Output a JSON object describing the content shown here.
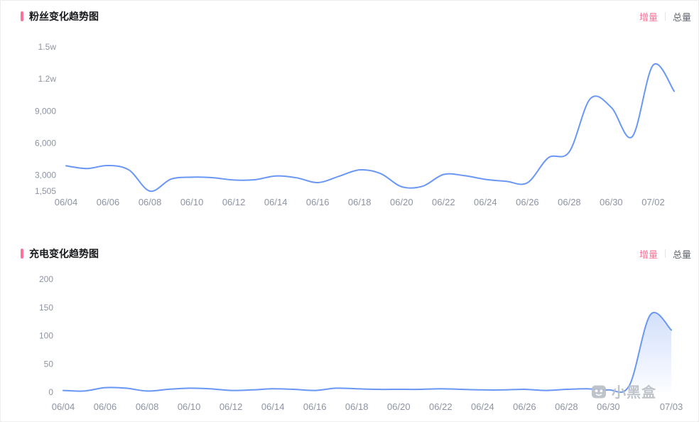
{
  "page": {
    "background": "#ffffff",
    "accent_color": "#fb7299",
    "line_color": "#6a97f5",
    "axis_label_color": "#8d93a2"
  },
  "watermark": {
    "text": "小黑盒",
    "icon": "xiaoheihe-box-logo"
  },
  "chart_data": [
    {
      "type": "line",
      "title": "粉丝变化趋势图",
      "controls": {
        "increment": "增量",
        "total": "总量",
        "active": "increment"
      },
      "color": "#6a97f5",
      "area": false,
      "grid": false,
      "legend_position": "none",
      "ylim": [
        1505,
        15000
      ],
      "yticks": [
        {
          "value": 1505,
          "label": "1,505"
        },
        {
          "value": 3000,
          "label": "3,000"
        },
        {
          "value": 6000,
          "label": "6,000"
        },
        {
          "value": 9000,
          "label": "9,000"
        },
        {
          "value": 12000,
          "label": "1.2w"
        },
        {
          "value": 15000,
          "label": "1.5w"
        }
      ],
      "x": [
        "06/04",
        "06/05",
        "06/06",
        "06/07",
        "06/08",
        "06/09",
        "06/10",
        "06/11",
        "06/12",
        "06/13",
        "06/14",
        "06/15",
        "06/16",
        "06/17",
        "06/18",
        "06/19",
        "06/20",
        "06/21",
        "06/22",
        "06/23",
        "06/24",
        "06/25",
        "06/26",
        "06/27",
        "06/28",
        "06/29",
        "06/30",
        "07/01",
        "07/02",
        "07/03"
      ],
      "xtick_indices": [
        0,
        2,
        4,
        6,
        8,
        10,
        12,
        14,
        16,
        18,
        20,
        22,
        24,
        26,
        28
      ],
      "values": [
        3870,
        3620,
        3900,
        3480,
        1505,
        2620,
        2810,
        2760,
        2540,
        2570,
        2920,
        2750,
        2300,
        2880,
        3490,
        3150,
        1920,
        1960,
        3060,
        2950,
        2600,
        2420,
        2280,
        4620,
        5180,
        10150,
        9350,
        6600,
        13300,
        10850
      ]
    },
    {
      "type": "line",
      "title": "充电变化趋势图",
      "controls": {
        "increment": "增量",
        "total": "总量",
        "active": "increment"
      },
      "color": "#6a97f5",
      "area": true,
      "grid": false,
      "legend_position": "none",
      "ylim": [
        0,
        200
      ],
      "yticks": [
        {
          "value": 0,
          "label": "0"
        },
        {
          "value": 50,
          "label": "50"
        },
        {
          "value": 100,
          "label": "100"
        },
        {
          "value": 150,
          "label": "150"
        },
        {
          "value": 200,
          "label": "200"
        }
      ],
      "x": [
        "06/04",
        "06/05",
        "06/06",
        "06/07",
        "06/08",
        "06/09",
        "06/10",
        "06/11",
        "06/12",
        "06/13",
        "06/14",
        "06/15",
        "06/16",
        "06/17",
        "06/18",
        "06/19",
        "06/20",
        "06/21",
        "06/22",
        "06/23",
        "06/24",
        "06/25",
        "06/26",
        "06/27",
        "06/28",
        "06/29",
        "06/30",
        "07/01",
        "07/02",
        "07/03"
      ],
      "xtick_indices": [
        0,
        2,
        4,
        6,
        8,
        10,
        12,
        14,
        16,
        18,
        20,
        22,
        24,
        26,
        29
      ],
      "values": [
        3,
        2,
        8,
        7,
        2,
        5,
        7,
        6,
        3,
        4,
        6,
        5,
        3,
        7,
        6,
        5,
        5,
        5,
        6,
        5,
        4,
        4,
        5,
        3,
        5,
        6,
        4,
        12,
        137,
        110
      ]
    }
  ]
}
